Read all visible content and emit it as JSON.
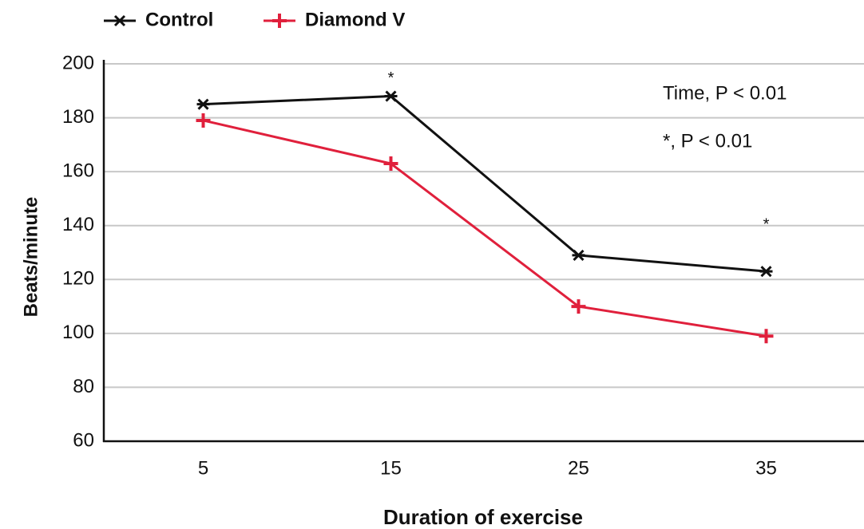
{
  "chart_data": {
    "type": "line",
    "x_label": "Duration of exercise",
    "y_label": "Beats/minute",
    "x": [
      5,
      15,
      25,
      35
    ],
    "xlim": [
      0,
      40
    ],
    "xticks": [
      5,
      15,
      25,
      35
    ],
    "ylim": [
      60,
      200
    ],
    "yticks": [
      60,
      80,
      100,
      120,
      140,
      160,
      180,
      200
    ],
    "grid": true,
    "legend": "top-left",
    "series": [
      {
        "name": "Control",
        "color": "#111111",
        "marker": "x",
        "values": [
          185,
          188,
          129,
          123
        ]
      },
      {
        "name": "Diamond V",
        "color": "#e0203c",
        "marker": "+",
        "values": [
          179,
          163,
          110,
          99
        ]
      }
    ],
    "annotations": [
      "Time, P < 0.01",
      "*, P < 0.01"
    ],
    "significance": {
      "text": "*",
      "x": [
        15,
        35
      ]
    }
  }
}
